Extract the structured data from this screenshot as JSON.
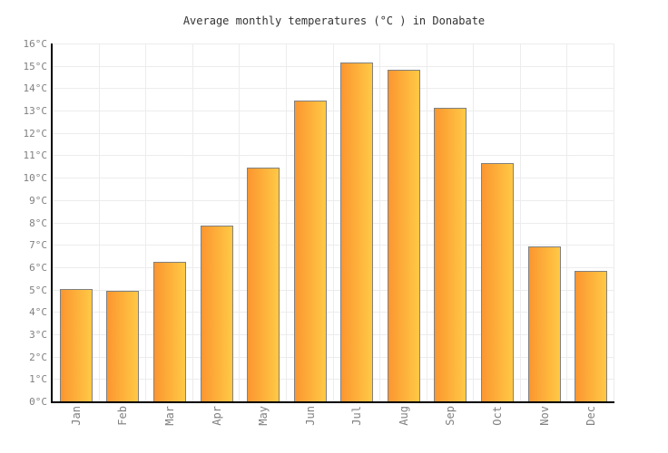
{
  "figure": {
    "title": "Average monthly temperatures (°C ) in Donabate"
  },
  "chart_data": {
    "type": "bar",
    "title": "Average monthly temperatures (°C ) in Donabate",
    "categories": [
      "Jan",
      "Feb",
      "Mar",
      "Apr",
      "May",
      "Jun",
      "Jul",
      "Aug",
      "Sep",
      "Oct",
      "Nov",
      "Dec"
    ],
    "values": [
      5.0,
      4.9,
      6.2,
      7.8,
      10.4,
      13.4,
      15.1,
      14.8,
      13.1,
      10.6,
      6.9,
      5.8
    ],
    "unit": "°C",
    "xlabel": "",
    "ylabel": "",
    "ylim": [
      0,
      16
    ],
    "ytick_step": 1,
    "ytick_suffix": "°C",
    "grid": true,
    "legend_position": "none",
    "colors": {
      "bar_gradient_left": "#FB9630",
      "bar_gradient_right": "#FFC945",
      "bar_border": "#808080",
      "axis": "#000000",
      "gridline": "#ececec",
      "tick_label": "#808080",
      "title_text": "#333333",
      "background": "#ffffff"
    }
  }
}
